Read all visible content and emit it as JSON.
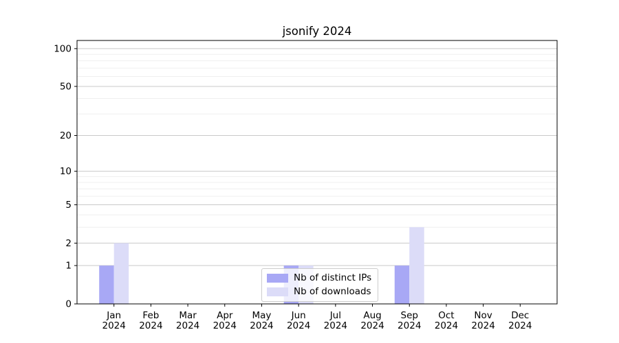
{
  "chart_data": {
    "type": "bar",
    "title": "jsonify 2024",
    "categories": [
      "Jan",
      "Feb",
      "Mar",
      "Apr",
      "May",
      "Jun",
      "Jul",
      "Aug",
      "Sep",
      "Oct",
      "Nov",
      "Dec"
    ],
    "x_tick_year": "2024",
    "series": [
      {
        "name": "Nb of distinct IPs",
        "color": "#a8a8f5",
        "values": [
          1,
          0,
          0,
          0,
          0,
          1,
          0,
          0,
          1,
          0,
          0,
          0
        ]
      },
      {
        "name": "Nb of downloads",
        "color": "#dcdcf8",
        "values": [
          2,
          0,
          0,
          0,
          0,
          1,
          0,
          0,
          3,
          0,
          0,
          0
        ]
      }
    ],
    "y_axis": {
      "scale": "log10(value+1)",
      "ticks_major": [
        0,
        1,
        2,
        5,
        10,
        20,
        50,
        100
      ],
      "ticks_minor": [
        3,
        4,
        6,
        7,
        8,
        9,
        30,
        40,
        60,
        70,
        80,
        90
      ],
      "max": 116
    },
    "grid": {
      "major_color": "#c9c9c9",
      "minor_color": "#efefef"
    },
    "axis_color": "#000000",
    "legend_position": "lower center"
  }
}
